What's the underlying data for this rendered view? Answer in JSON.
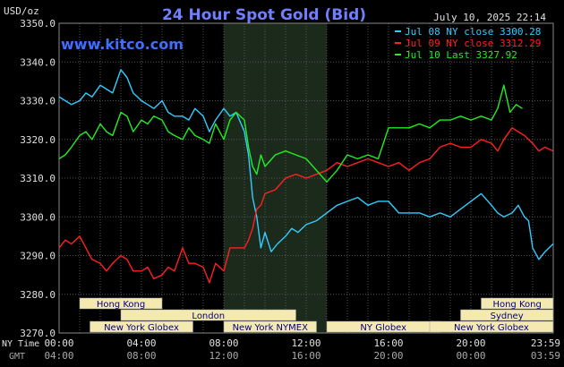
{
  "chart_data": {
    "type": "line",
    "title": "24 Hour Spot Gold (Bid)",
    "source_label": "www.kitco.com",
    "timestamp": "July 10, 2025 22:14",
    "ylabel": "USD/oz",
    "ylim": [
      3270,
      3350
    ],
    "y_ticks": [
      "3350.0",
      "3340.0",
      "3330.0",
      "3320.0",
      "3310.0",
      "3300.0",
      "3290.0",
      "3280.0",
      "3270.0"
    ],
    "x_ticks_ny": [
      "00:00",
      "04:00",
      "08:00",
      "12:00",
      "16:00",
      "20:00",
      "23:59"
    ],
    "x_ticks_gmt": [
      "04:00",
      "08:00",
      "12:00",
      "16:00",
      "20:00",
      "00:00",
      "03:59"
    ],
    "x_row_labels": {
      "ny": "NY Time",
      "gmt": "GMT"
    },
    "legend_placement": "top-right",
    "grid": true,
    "colors": {
      "background": "#000000",
      "plot": "#000000",
      "grid": "#555555",
      "highlight": "#1c2a1c",
      "title": "#6f7fff",
      "source": "#3f6fff",
      "axis_text": "#e0e0e0",
      "session_bar": "#f4e9b0",
      "session_text": "#000080"
    },
    "series": [
      {
        "name": "Jul 08 NY close 3300.28",
        "color": "#33ccff",
        "x": [
          0,
          0.3,
          0.6,
          1.0,
          1.3,
          1.6,
          2.0,
          2.3,
          2.6,
          3.0,
          3.3,
          3.6,
          4.0,
          4.3,
          4.6,
          5.0,
          5.3,
          5.6,
          6.0,
          6.3,
          6.6,
          7.0,
          7.3,
          7.6,
          8.0,
          8.3,
          8.6,
          9.0,
          9.2,
          9.4,
          9.6,
          9.8,
          10.0,
          10.3,
          10.6,
          11.0,
          11.3,
          11.6,
          12.0,
          12.5,
          13.0,
          13.5,
          14.0,
          14.5,
          15.0,
          15.5,
          16.0,
          16.5,
          17.0,
          17.5,
          18.0,
          18.5,
          19.0,
          19.5,
          20.0,
          20.5,
          21.0,
          21.3,
          21.6,
          22.0,
          22.3,
          22.6,
          22.8,
          23.0,
          23.3,
          23.6,
          23.99
        ],
        "y": [
          3331,
          3330,
          3329,
          3330,
          3332,
          3331,
          3334,
          3333,
          3332,
          3338,
          3336,
          3332,
          3330,
          3329,
          3328,
          3330,
          3327,
          3326,
          3326,
          3325,
          3328,
          3326,
          3322,
          3325,
          3328,
          3326,
          3327,
          3322,
          3316,
          3305,
          3300,
          3292,
          3296,
          3291,
          3293,
          3295,
          3297,
          3296,
          3298,
          3299,
          3301,
          3303,
          3304,
          3305,
          3303,
          3304,
          3304,
          3301,
          3301,
          3301,
          3300,
          3301,
          3300,
          3302,
          3304,
          3306,
          3303,
          3301,
          3300,
          3301,
          3303,
          3300,
          3299,
          3292,
          3289,
          3291,
          3293
        ]
      },
      {
        "name": "Jul 09 NY close 3312.29",
        "color": "#ff2020",
        "x": [
          0,
          0.3,
          0.6,
          1.0,
          1.3,
          1.6,
          2.0,
          2.3,
          2.6,
          3.0,
          3.3,
          3.6,
          4.0,
          4.3,
          4.6,
          5.0,
          5.3,
          5.6,
          6.0,
          6.3,
          6.6,
          7.0,
          7.3,
          7.6,
          8.0,
          8.3,
          8.6,
          9.0,
          9.2,
          9.4,
          9.6,
          9.8,
          10.0,
          10.5,
          11.0,
          11.5,
          12.0,
          12.5,
          13.0,
          13.5,
          14.0,
          14.5,
          15.0,
          15.5,
          16.0,
          16.5,
          17.0,
          17.5,
          18.0,
          18.5,
          19.0,
          19.5,
          20.0,
          20.5,
          21.0,
          21.3,
          21.6,
          22.0,
          22.3,
          22.6,
          23.0,
          23.3,
          23.6,
          23.99
        ],
        "y": [
          3292,
          3294,
          3293,
          3295,
          3292,
          3289,
          3288,
          3286,
          3288,
          3290,
          3289,
          3286,
          3286,
          3287,
          3284,
          3285,
          3287,
          3286,
          3292,
          3288,
          3288,
          3287,
          3283,
          3288,
          3286,
          3292,
          3292,
          3292,
          3294,
          3297,
          3302,
          3303,
          3306,
          3307,
          3310,
          3311,
          3310,
          3311,
          3312,
          3314,
          3313,
          3314,
          3315,
          3314,
          3313,
          3314,
          3312,
          3314,
          3315,
          3318,
          3319,
          3318,
          3318,
          3320,
          3319,
          3317,
          3320,
          3323,
          3322,
          3321,
          3319,
          3317,
          3318,
          3317
        ]
      },
      {
        "name": "Jul 10 Last 3327.92",
        "color": "#22ee22",
        "x": [
          0,
          0.3,
          0.6,
          1.0,
          1.3,
          1.6,
          2.0,
          2.3,
          2.6,
          3.0,
          3.3,
          3.6,
          4.0,
          4.3,
          4.6,
          5.0,
          5.3,
          5.6,
          6.0,
          6.3,
          6.6,
          7.0,
          7.3,
          7.6,
          8.0,
          8.3,
          8.6,
          9.0,
          9.2,
          9.4,
          9.6,
          9.8,
          10.0,
          10.5,
          11.0,
          11.5,
          12.0,
          12.5,
          13.0,
          13.5,
          14.0,
          14.5,
          15.0,
          15.5,
          16.0,
          16.5,
          17.0,
          17.5,
          18.0,
          18.5,
          19.0,
          19.5,
          20.0,
          20.5,
          21.0,
          21.3,
          21.6,
          21.9,
          22.2,
          22.5
        ],
        "y": [
          3315,
          3316,
          3318,
          3321,
          3322,
          3320,
          3324,
          3322,
          3321,
          3327,
          3326,
          3322,
          3325,
          3324,
          3326,
          3325,
          3322,
          3321,
          3320,
          3323,
          3321,
          3320,
          3319,
          3324,
          3320,
          3325,
          3327,
          3325,
          3318,
          3313,
          3311,
          3316,
          3313,
          3316,
          3317,
          3316,
          3315,
          3312,
          3309,
          3312,
          3316,
          3315,
          3316,
          3315,
          3323,
          3323,
          3323,
          3324,
          3323,
          3325,
          3325,
          3326,
          3325,
          3326,
          3325,
          3328,
          3334,
          3327,
          3329,
          3328
        ]
      }
    ]
  },
  "sessions": [
    {
      "label": "Hong Kong",
      "start": 1.0,
      "end": 5.0,
      "row": 0
    },
    {
      "label": "London",
      "start": 3.0,
      "end": 11.5,
      "row": 1
    },
    {
      "label": "New York Globex",
      "start": 1.5,
      "end": 6.5,
      "row": 2
    },
    {
      "label": "New York NYMEX",
      "start": 8.0,
      "end": 12.5,
      "row": 2
    },
    {
      "label": "NY Globex",
      "start": 13.0,
      "end": 18.5,
      "row": 2
    },
    {
      "label": "Hong Kong",
      "start": 20.5,
      "end": 23.99,
      "row": 0
    },
    {
      "label": "Sydney",
      "start": 19.5,
      "end": 23.99,
      "row": 1
    },
    {
      "label": "New York Globex",
      "start": 18.0,
      "end": 23.99,
      "row": 2
    }
  ]
}
